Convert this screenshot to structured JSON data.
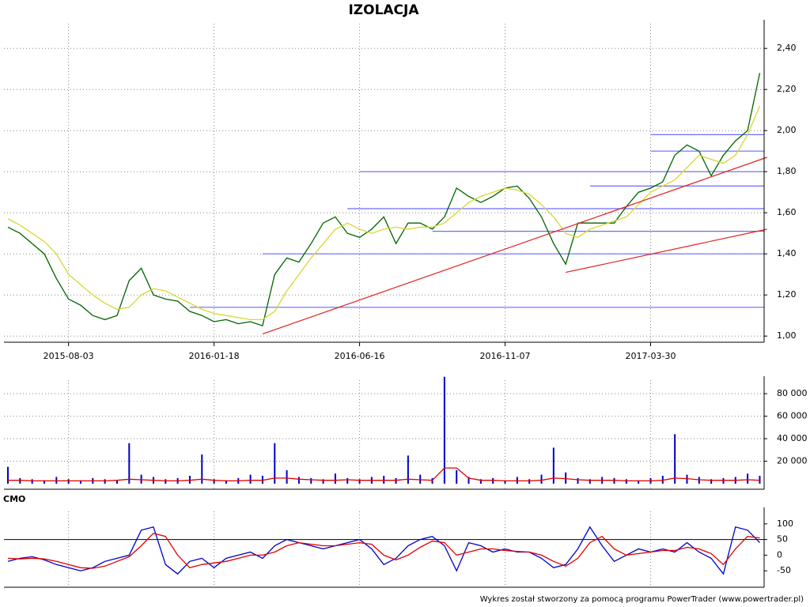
{
  "chart_data": [
    {
      "type": "line",
      "title": "IZOLACJA",
      "x": [
        null,
        null,
        null,
        null,
        null,
        "2015-08-03",
        null,
        null,
        null,
        null,
        null,
        null,
        null,
        null,
        null,
        null,
        null,
        "2016-01-18",
        null,
        null,
        null,
        null,
        null,
        null,
        null,
        null,
        null,
        null,
        null,
        "2016-06-16",
        null,
        null,
        null,
        null,
        null,
        null,
        null,
        null,
        null,
        null,
        null,
        "2016-11-07",
        null,
        null,
        null,
        null,
        null,
        null,
        null,
        null,
        null,
        null,
        null,
        "2017-03-30",
        null,
        null,
        null,
        null,
        null,
        null,
        null,
        null,
        null
      ],
      "series": [
        {
          "color": "#006400",
          "values": [
            1.53,
            1.5,
            1.45,
            1.4,
            1.28,
            1.18,
            1.15,
            1.1,
            1.08,
            1.1,
            1.27,
            1.33,
            1.2,
            1.18,
            1.17,
            1.12,
            1.1,
            1.07,
            1.08,
            1.06,
            1.07,
            1.05,
            1.3,
            1.38,
            1.36,
            1.45,
            1.55,
            1.58,
            1.5,
            1.48,
            1.52,
            1.58,
            1.45,
            1.55,
            1.55,
            1.52,
            1.58,
            1.72,
            1.68,
            1.65,
            1.68,
            1.72,
            1.73,
            1.67,
            1.58,
            1.45,
            1.35,
            1.55,
            1.55,
            1.55,
            1.55,
            1.63,
            1.7,
            1.72,
            1.75,
            1.88,
            1.93,
            1.9,
            1.78,
            1.88,
            1.95,
            2.0,
            2.28
          ]
        },
        {
          "color": "#d8d830",
          "values": [
            1.57,
            1.54,
            1.5,
            1.46,
            1.4,
            1.3,
            1.25,
            1.2,
            1.16,
            1.13,
            1.14,
            1.2,
            1.23,
            1.22,
            1.19,
            1.16,
            1.13,
            1.11,
            1.1,
            1.09,
            1.08,
            1.08,
            1.12,
            1.22,
            1.3,
            1.38,
            1.45,
            1.52,
            1.55,
            1.52,
            1.5,
            1.52,
            1.53,
            1.52,
            1.53,
            1.53,
            1.55,
            1.6,
            1.65,
            1.68,
            1.7,
            1.72,
            1.71,
            1.69,
            1.64,
            1.58,
            1.5,
            1.48,
            1.52,
            1.54,
            1.56,
            1.58,
            1.64,
            1.7,
            1.73,
            1.76,
            1.82,
            1.88,
            1.86,
            1.84,
            1.88,
            1.98,
            2.12
          ]
        }
      ],
      "ylim": [
        0.97,
        2.52
      ],
      "yticks": [
        {
          "value": 1.0,
          "label": "1,00"
        },
        {
          "value": 1.2,
          "label": "1,20"
        },
        {
          "value": 1.4,
          "label": "1,40"
        },
        {
          "value": 1.6,
          "label": "1,60"
        },
        {
          "value": 1.8,
          "label": "1,80"
        },
        {
          "value": 2.0,
          "label": "2,00"
        },
        {
          "value": 2.2,
          "label": "2,20"
        },
        {
          "value": 2.4,
          "label": "2,40"
        }
      ],
      "grid": true,
      "levels": [
        {
          "value": 1.14,
          "from": 15,
          "color": "#6a6aff"
        },
        {
          "value": 1.4,
          "from": 21,
          "color": "#6a6aff"
        },
        {
          "value": 1.51,
          "from": 35,
          "color": "#6a6aff"
        },
        {
          "value": 1.62,
          "from": 28,
          "color": "#6a6aff"
        },
        {
          "value": 1.73,
          "from": 48,
          "color": "#6a6aff"
        },
        {
          "value": 1.8,
          "from": 29,
          "color": "#6a6aff"
        },
        {
          "value": 1.9,
          "from": 53,
          "color": "#6a6aff"
        },
        {
          "value": 1.98,
          "from": 53,
          "color": "#6a6aff"
        }
      ],
      "trendlines": [
        {
          "x0": 21,
          "y0": 1.01,
          "x1": 62.6,
          "y1": 1.87,
          "color": "#e02020"
        },
        {
          "x0": 46,
          "y0": 1.31,
          "x1": 62.6,
          "y1": 1.52,
          "color": "#e02020"
        }
      ]
    },
    {
      "type": "bar",
      "series": [
        {
          "type": "bar",
          "color": "#0000c8",
          "values": [
            15000,
            5000,
            4000,
            3000,
            6000,
            4000,
            3000,
            5000,
            4000,
            3000,
            36000,
            8000,
            6000,
            4000,
            5000,
            7000,
            26000,
            4000,
            3000,
            5000,
            8000,
            7000,
            36000,
            12000,
            6000,
            5000,
            4000,
            9000,
            5000,
            4000,
            6000,
            7000,
            5000,
            25000,
            8000,
            5000,
            95000,
            12000,
            6000,
            4000,
            5000,
            3000,
            6000,
            4000,
            8000,
            32000,
            10000,
            5000,
            4000,
            6000,
            5000,
            4000,
            3000,
            5000,
            7000,
            44000,
            8000,
            6000,
            4000,
            5000,
            6000,
            9000,
            7000
          ]
        },
        {
          "type": "line",
          "color": "#e00000",
          "values": [
            3000,
            3000,
            2500,
            2500,
            2500,
            2500,
            2500,
            2500,
            2500,
            3000,
            4000,
            3500,
            3000,
            2500,
            2500,
            3000,
            4000,
            3000,
            2500,
            2500,
            3000,
            3000,
            5000,
            5000,
            4000,
            3500,
            3000,
            3000,
            3500,
            3000,
            3000,
            3000,
            3000,
            4000,
            3500,
            3000,
            14000,
            14000,
            5000,
            3000,
            3000,
            2500,
            2500,
            2500,
            3000,
            5000,
            4500,
            3500,
            3000,
            3000,
            3000,
            2500,
            2500,
            2500,
            3000,
            5000,
            4500,
            3500,
            3000,
            3000,
            3000,
            3500,
            3000
          ]
        }
      ],
      "ylim": [
        0,
        92000
      ],
      "yticks": [
        {
          "value": 20000,
          "label": "20 000"
        },
        {
          "value": 40000,
          "label": "40 000"
        },
        {
          "value": 60000,
          "label": "60 000"
        },
        {
          "value": 80000,
          "label": "80 000"
        }
      ],
      "grid": true
    },
    {
      "type": "line",
      "title": "CMO",
      "series": [
        {
          "color": "#0000c8",
          "values": [
            -20,
            -10,
            -5,
            -15,
            -30,
            -40,
            -50,
            -40,
            -20,
            -10,
            0,
            80,
            90,
            -30,
            -60,
            -20,
            -10,
            -40,
            -10,
            0,
            10,
            -10,
            30,
            50,
            40,
            30,
            20,
            30,
            40,
            50,
            20,
            -30,
            -10,
            30,
            50,
            60,
            30,
            -50,
            40,
            30,
            10,
            20,
            10,
            10,
            -10,
            -40,
            -30,
            20,
            90,
            30,
            -20,
            0,
            20,
            10,
            20,
            10,
            40,
            10,
            -10,
            -60,
            90,
            80,
            40
          ]
        },
        {
          "color": "#e00000",
          "values": [
            -10,
            -12,
            -10,
            -12,
            -20,
            -30,
            -40,
            -42,
            -35,
            -20,
            -5,
            30,
            70,
            60,
            0,
            -40,
            -30,
            -25,
            -20,
            -10,
            0,
            0,
            10,
            30,
            40,
            35,
            30,
            30,
            35,
            40,
            35,
            0,
            -15,
            0,
            25,
            45,
            40,
            0,
            10,
            20,
            20,
            15,
            12,
            10,
            0,
            -20,
            -35,
            -10,
            40,
            60,
            20,
            0,
            5,
            10,
            15,
            15,
            25,
            20,
            5,
            -30,
            20,
            60,
            55
          ]
        }
      ],
      "ylim": [
        -100,
        140
      ],
      "yticks": [
        -50,
        0,
        50,
        100
      ],
      "hlines": [
        50
      ]
    }
  ],
  "footer": "Wykres został stworzony za pomocą programu PowerTrader (www.powertrader.pl)"
}
